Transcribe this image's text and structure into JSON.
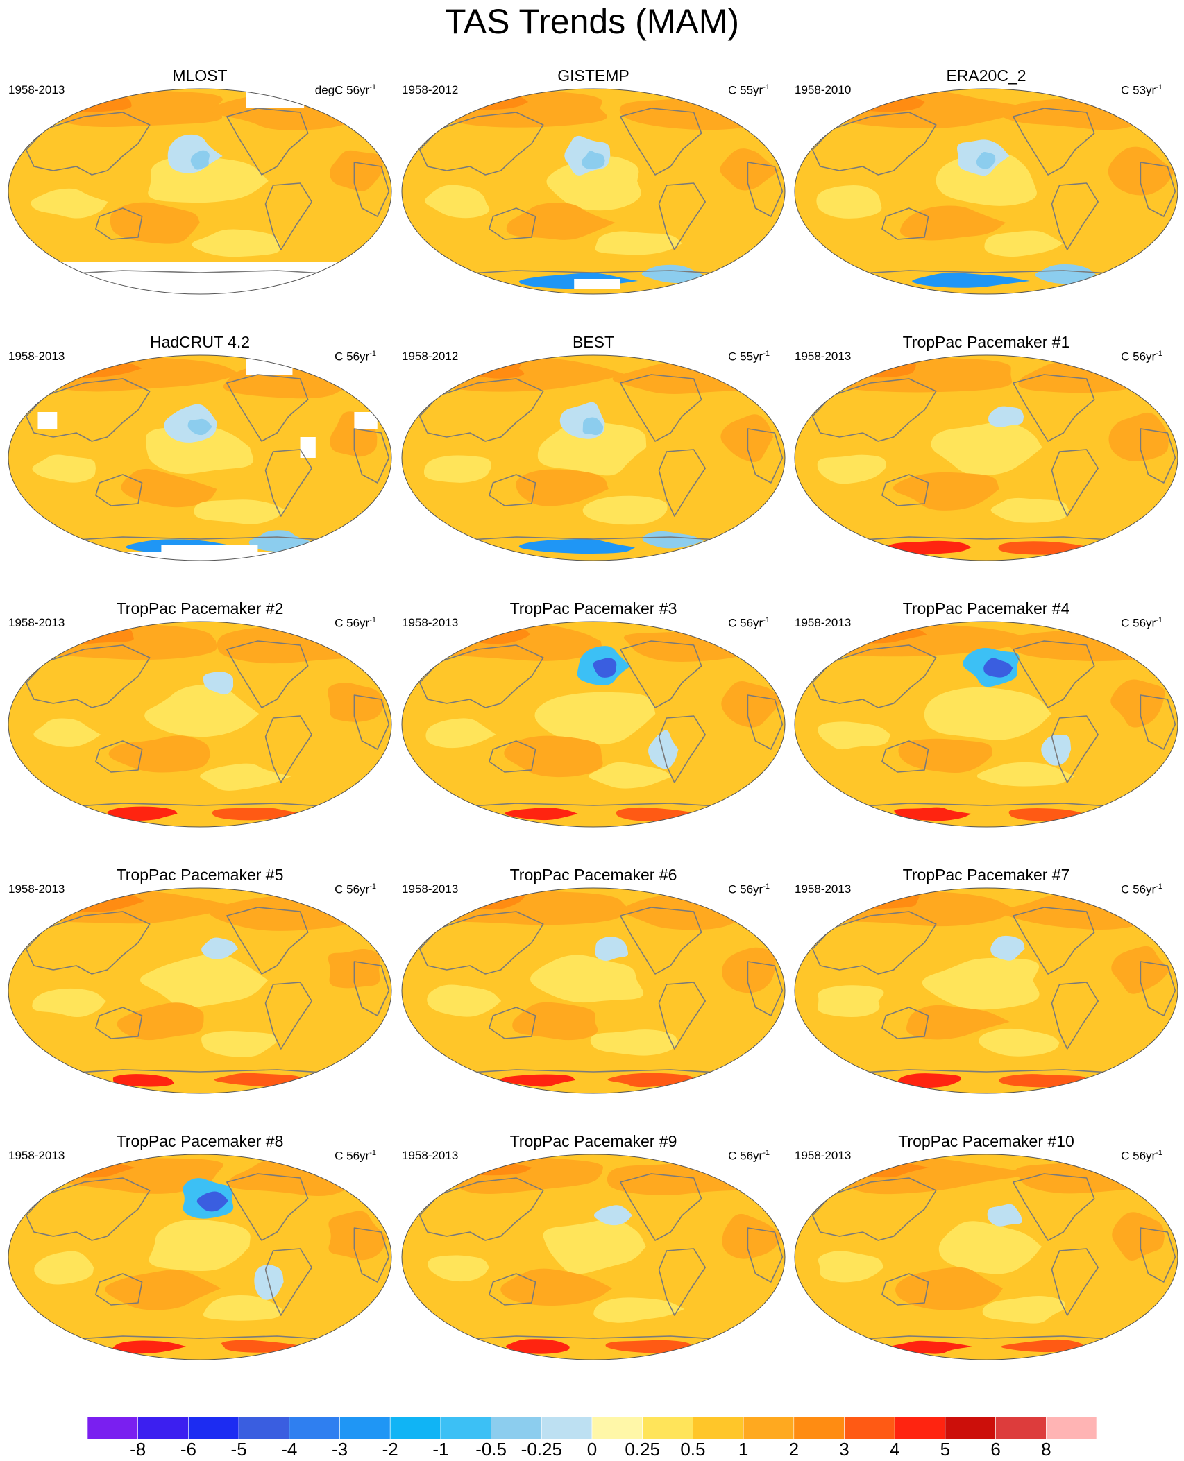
{
  "title": "TAS Trends (MAM)",
  "panels": [
    {
      "name": "MLOST",
      "years": "1958-2013",
      "units": "degC 56yr",
      "pattern": "obs",
      "missing": "mlost"
    },
    {
      "name": "GISTEMP",
      "years": "1958-2012",
      "units": "C 55yr",
      "pattern": "obs",
      "missing": "gistemp"
    },
    {
      "name": "ERA20C_2",
      "years": "1958-2010",
      "units": "C 53yr",
      "pattern": "reanalysis",
      "missing": "none"
    },
    {
      "name": "HadCRUT 4.2",
      "years": "1958-2013",
      "units": "C 56yr",
      "pattern": "obs",
      "missing": "hadcrut"
    },
    {
      "name": "BEST",
      "years": "1958-2012",
      "units": "C 55yr",
      "pattern": "obs",
      "missing": "none"
    },
    {
      "name": "TropPac Pacemaker #1",
      "years": "1958-2013",
      "units": "C 56yr",
      "pattern": "model",
      "missing": "none"
    },
    {
      "name": "TropPac Pacemaker #2",
      "years": "1958-2013",
      "units": "C 56yr",
      "pattern": "model",
      "missing": "none"
    },
    {
      "name": "TropPac Pacemaker #3",
      "years": "1958-2013",
      "units": "C 56yr",
      "pattern": "model-cool",
      "missing": "none"
    },
    {
      "name": "TropPac Pacemaker #4",
      "years": "1958-2013",
      "units": "C 56yr",
      "pattern": "model-cool",
      "missing": "none"
    },
    {
      "name": "TropPac Pacemaker #5",
      "years": "1958-2013",
      "units": "C 56yr",
      "pattern": "model",
      "missing": "none"
    },
    {
      "name": "TropPac Pacemaker #6",
      "years": "1958-2013",
      "units": "C 56yr",
      "pattern": "model",
      "missing": "none"
    },
    {
      "name": "TropPac Pacemaker #7",
      "years": "1958-2013",
      "units": "C 56yr",
      "pattern": "model",
      "missing": "none"
    },
    {
      "name": "TropPac Pacemaker #8",
      "years": "1958-2013",
      "units": "C 56yr",
      "pattern": "model-cool",
      "missing": "none"
    },
    {
      "name": "TropPac Pacemaker #9",
      "years": "1958-2013",
      "units": "C 56yr",
      "pattern": "model",
      "missing": "none"
    },
    {
      "name": "TropPac Pacemaker #10",
      "years": "1958-2013",
      "units": "C 56yr",
      "pattern": "model",
      "missing": "none"
    }
  ],
  "units_exponent": "-1",
  "colorbar": {
    "colors": [
      "#7a1ff0",
      "#3c1ff0",
      "#1c2cf2",
      "#3a5ee0",
      "#2f7ff0",
      "#1f96f5",
      "#10b4f5",
      "#3cc0f5",
      "#8ccdee",
      "#bde0f2",
      "#fff7a8",
      "#ffe45a",
      "#ffc629",
      "#ffa91f",
      "#ff8c12",
      "#ff5a14",
      "#ff2410",
      "#cc0f0a",
      "#dd3c3c",
      "#ffb4b4"
    ],
    "labels": [
      "-8",
      "-6",
      "-5",
      "-4",
      "-3",
      "-2",
      "-1",
      "-0.5",
      "-0.25",
      "0",
      "0.25",
      "0.5",
      "1",
      "2",
      "3",
      "4",
      "5",
      "6",
      "8"
    ]
  }
}
